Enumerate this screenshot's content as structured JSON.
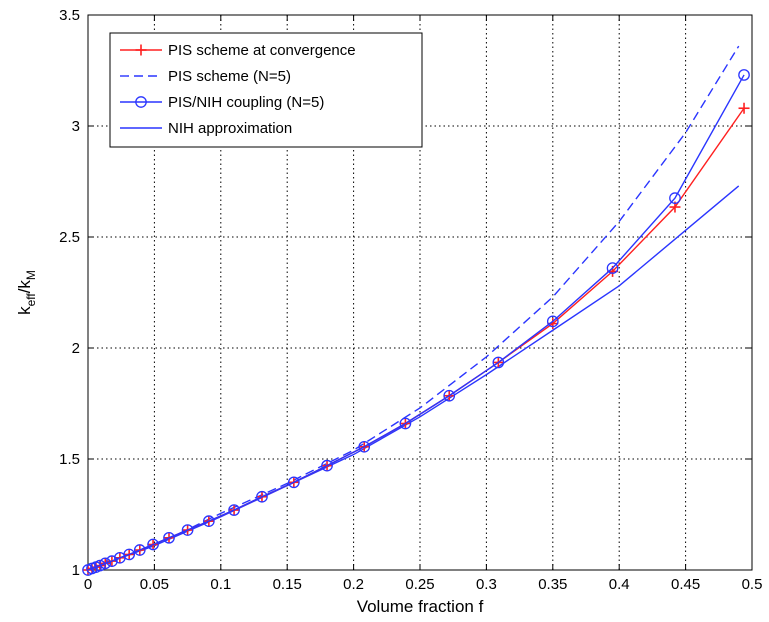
{
  "chart_data": {
    "type": "line",
    "title": "",
    "xlabel": "Volume fraction f",
    "ylabel": {
      "base": "k",
      "sub1": "eff",
      "sep": "/k",
      "sub2": "M"
    },
    "xlim": [
      0,
      0.5
    ],
    "ylim": [
      1,
      3.5
    ],
    "xticks": [
      0,
      0.05,
      0.1,
      0.15,
      0.2,
      0.25,
      0.3,
      0.35,
      0.4,
      0.45,
      0.5
    ],
    "yticks": [
      1,
      1.5,
      2,
      2.5,
      3,
      3.5
    ],
    "xtick_labels": [
      "0",
      "0.05",
      "0.1",
      "0.15",
      "0.2",
      "0.25",
      "0.3",
      "0.35",
      "0.4",
      "0.45",
      "0.5"
    ],
    "ytick_labels": [
      "1",
      "1.5",
      "2",
      "2.5",
      "3",
      "3.5"
    ],
    "grid": true,
    "legend_position": "top-left",
    "series": [
      {
        "name": "PIS scheme at convergence",
        "color": "#ff2020",
        "style": "solid",
        "marker": "plus",
        "x": [
          0,
          0.003,
          0.006,
          0.009,
          0.013,
          0.018,
          0.024,
          0.031,
          0.039,
          0.049,
          0.061,
          0.075,
          0.091,
          0.11,
          0.131,
          0.155,
          0.18,
          0.208,
          0.239,
          0.272,
          0.309,
          0.35,
          0.395,
          0.442,
          0.494
        ],
        "y": [
          1,
          1.007,
          1.013,
          1.02,
          1.03,
          1.04,
          1.055,
          1.07,
          1.09,
          1.115,
          1.145,
          1.18,
          1.22,
          1.27,
          1.33,
          1.395,
          1.47,
          1.555,
          1.66,
          1.785,
          1.935,
          2.11,
          2.345,
          2.635,
          3.08
        ]
      },
      {
        "name": "PIS scheme (N=5)",
        "color": "#2a35ff",
        "style": "dashed",
        "marker": "none",
        "x": [
          0,
          0.05,
          0.1,
          0.15,
          0.2,
          0.25,
          0.3,
          0.35,
          0.4,
          0.45,
          0.49
        ],
        "y": [
          1,
          1.11,
          1.255,
          1.39,
          1.54,
          1.73,
          1.96,
          2.23,
          2.57,
          2.97,
          3.36
        ]
      },
      {
        "name": "PIS/NIH coupling (N=5)",
        "color": "#2a35ff",
        "style": "solid",
        "marker": "circle",
        "x": [
          0,
          0.003,
          0.006,
          0.009,
          0.013,
          0.018,
          0.024,
          0.031,
          0.039,
          0.049,
          0.061,
          0.075,
          0.091,
          0.11,
          0.131,
          0.155,
          0.18,
          0.208,
          0.239,
          0.272,
          0.309,
          0.35,
          0.395,
          0.442,
          0.494
        ],
        "y": [
          1,
          1.007,
          1.013,
          1.02,
          1.03,
          1.04,
          1.055,
          1.07,
          1.09,
          1.115,
          1.145,
          1.18,
          1.22,
          1.27,
          1.33,
          1.395,
          1.47,
          1.555,
          1.66,
          1.785,
          1.935,
          2.12,
          2.36,
          2.675,
          3.23
        ]
      },
      {
        "name": "NIH approximation",
        "color": "#2a35ff",
        "style": "solid",
        "marker": "none",
        "x": [
          0,
          0.05,
          0.1,
          0.15,
          0.2,
          0.25,
          0.3,
          0.35,
          0.4,
          0.45,
          0.49
        ],
        "y": [
          1,
          1.11,
          1.24,
          1.38,
          1.52,
          1.69,
          1.88,
          2.08,
          2.28,
          2.53,
          2.73
        ]
      }
    ]
  }
}
